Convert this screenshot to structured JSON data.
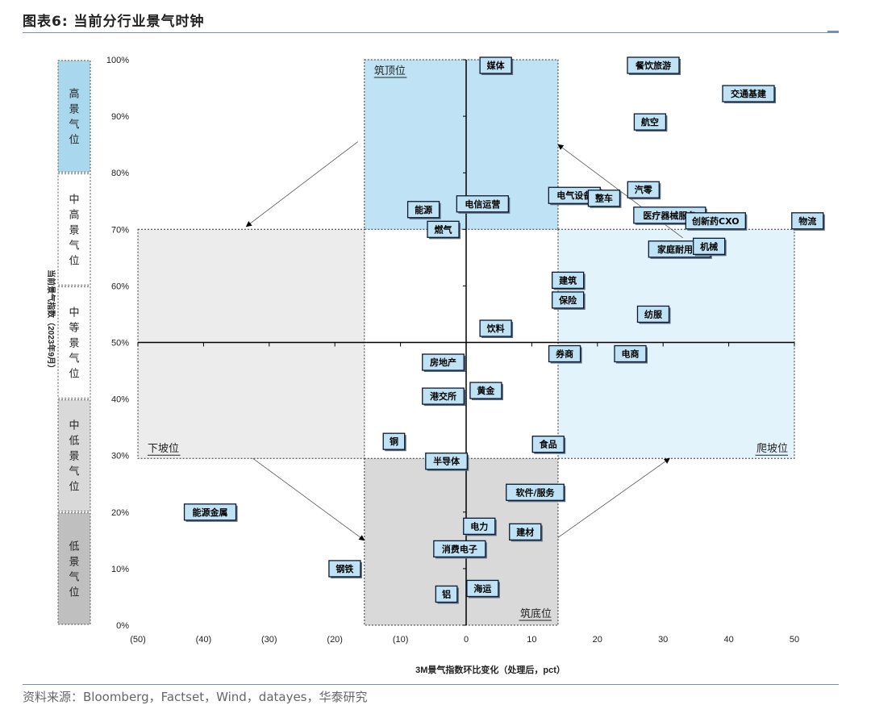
{
  "figure": {
    "title": "图表6:  当前分行业景气时钟",
    "source": "资料来源：Bloomberg，Factset，Wind，datayes，华泰研究"
  },
  "chart_data": {
    "type": "scatter",
    "title": "图表6:  当前分行业景气时钟",
    "xlabel": "3M景气指数环比变化（处理后，pct）",
    "ylabel": "当前景气指数（2023年9月）",
    "xlim": [
      -50,
      50
    ],
    "ylim": [
      0,
      100
    ],
    "x_ticks": [
      "(50)",
      "(40)",
      "(30)",
      "(20)",
      "(10)",
      "0",
      "10",
      "20",
      "30",
      "40",
      "50"
    ],
    "y_ticks": [
      "0%",
      "10%",
      "20%",
      "30%",
      "40%",
      "50%",
      "60%",
      "70%",
      "80%",
      "90%",
      "100%"
    ],
    "grid": false,
    "bands": [
      {
        "label": "高景气位",
        "y_range": [
          80,
          100
        ],
        "color": "#a9d8ee"
      },
      {
        "label": "中高景气位",
        "y_range": [
          60,
          80
        ],
        "color": "#ffffff"
      },
      {
        "label": "中等景气位",
        "y_range": [
          40,
          60
        ],
        "color": "#ffffff"
      },
      {
        "label": "中低景气位",
        "y_range": [
          20,
          40
        ],
        "color": "#d9d9d9"
      },
      {
        "label": "低景气位",
        "y_range": [
          0,
          20
        ],
        "color": "#bfbfbf"
      }
    ],
    "quadrants": [
      {
        "label": "筑顶位",
        "x_range": [
          -15.5,
          14
        ],
        "y_range": [
          70,
          100
        ],
        "color": "#bfe3f4"
      },
      {
        "label": "爬坡位",
        "x_range": [
          14,
          50
        ],
        "y_range": [
          29.5,
          70
        ],
        "color": "#e3f3fb"
      },
      {
        "label": "筑底位",
        "x_range": [
          -15.5,
          14
        ],
        "y_range": [
          0,
          29.5
        ],
        "color": "#d9d9d9"
      },
      {
        "label": "下坡位",
        "x_range": [
          -50,
          -15.5
        ],
        "y_range": [
          29.5,
          70
        ],
        "color": "#ececec"
      }
    ],
    "points": [
      {
        "label": "媒体",
        "x": 4.5,
        "y": 99
      },
      {
        "label": "餐饮旅游",
        "x": 28.5,
        "y": 99
      },
      {
        "label": "交通基建",
        "x": 43,
        "y": 94
      },
      {
        "label": "航空",
        "x": 28,
        "y": 89
      },
      {
        "label": "汽零",
        "x": 27,
        "y": 77
      },
      {
        "label": "电气设备",
        "x": 16.5,
        "y": 76
      },
      {
        "label": "整车",
        "x": 21,
        "y": 75.5
      },
      {
        "label": "能源",
        "x": -6.5,
        "y": 73.5
      },
      {
        "label": "电信运营",
        "x": 2.5,
        "y": 74.5
      },
      {
        "label": "医疗器械服务",
        "x": 31,
        "y": 72.5
      },
      {
        "label": "创新药CXO",
        "x": 38,
        "y": 71.5
      },
      {
        "label": "物流",
        "x": 52,
        "y": 71.5
      },
      {
        "label": "燃气",
        "x": -3.5,
        "y": 70
      },
      {
        "label": "家庭耐用品",
        "x": 32.5,
        "y": 66.5
      },
      {
        "label": "机械",
        "x": 37,
        "y": 67
      },
      {
        "label": "建筑",
        "x": 15.5,
        "y": 61
      },
      {
        "label": "保险",
        "x": 15.5,
        "y": 57.5
      },
      {
        "label": "纺服",
        "x": 28.5,
        "y": 55
      },
      {
        "label": "饮料",
        "x": 4.5,
        "y": 52.5
      },
      {
        "label": "券商",
        "x": 15,
        "y": 48
      },
      {
        "label": "电商",
        "x": 25,
        "y": 48
      },
      {
        "label": "房地产",
        "x": -3.5,
        "y": 46.5
      },
      {
        "label": "港交所",
        "x": -3.5,
        "y": 40.5
      },
      {
        "label": "黄金",
        "x": 3,
        "y": 41.5
      },
      {
        "label": "铜",
        "x": -11,
        "y": 32.5
      },
      {
        "label": "食品",
        "x": 12.5,
        "y": 32
      },
      {
        "label": "半导体",
        "x": -3,
        "y": 29
      },
      {
        "label": "软件/服务",
        "x": 10.5,
        "y": 23.5
      },
      {
        "label": "能源金属",
        "x": -39,
        "y": 20
      },
      {
        "label": "电力",
        "x": 2,
        "y": 17.5
      },
      {
        "label": "建材",
        "x": 9,
        "y": 16.5
      },
      {
        "label": "消费电子",
        "x": -1,
        "y": 13.5
      },
      {
        "label": "钢铁",
        "x": -18.5,
        "y": 10
      },
      {
        "label": "海运",
        "x": 2.5,
        "y": 6.5
      },
      {
        "label": "铝",
        "x": -3,
        "y": 5.5
      }
    ],
    "cycle_arrows": [
      {
        "from": [
          -16.5,
          85.5
        ],
        "to": [
          -33.5,
          70.5
        ]
      },
      {
        "from": [
          -32.5,
          29.5
        ],
        "to": [
          -15.5,
          15
        ]
      },
      {
        "from": [
          14,
          15.5
        ],
        "to": [
          31,
          29.5
        ]
      },
      {
        "from": [
          33,
          68.5
        ],
        "to": [
          14,
          85
        ]
      }
    ],
    "colors": {
      "label_box_fill": "#bfe3f4",
      "label_box_stroke": "#0a1830",
      "axis": "#000000"
    }
  }
}
